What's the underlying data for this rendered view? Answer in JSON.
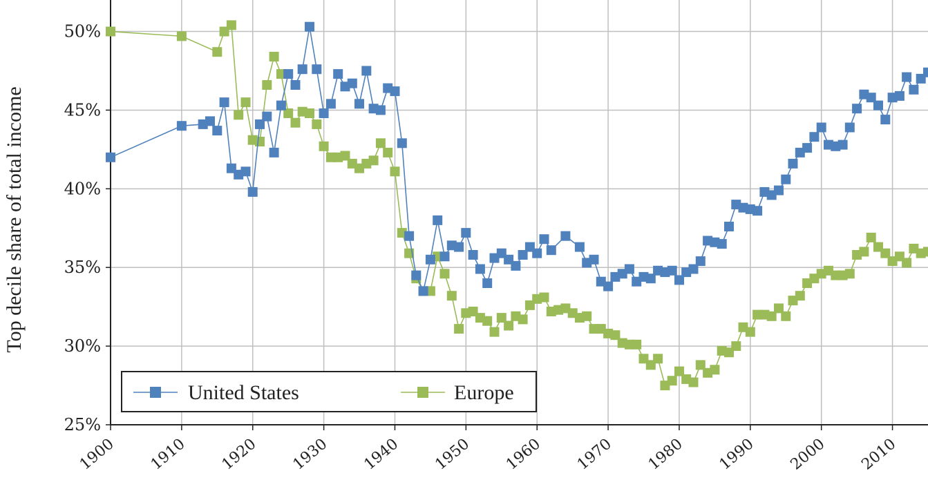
{
  "chart_data": {
    "type": "line",
    "title": "",
    "xlabel": "",
    "ylabel": "Top decile share of total income",
    "xlim": [
      1900,
      2015
    ],
    "ylim": [
      0.25,
      0.52
    ],
    "x_ticks": [
      1900,
      1910,
      1920,
      1930,
      1940,
      1950,
      1960,
      1970,
      1980,
      1990,
      2000,
      2010
    ],
    "x_tick_labels": [
      "1900",
      "1910",
      "1920",
      "1930",
      "1940",
      "1950",
      "1960",
      "1970",
      "1980",
      "1990",
      "2000",
      "2010"
    ],
    "y_ticks": [
      0.25,
      0.3,
      0.35,
      0.4,
      0.45,
      0.5
    ],
    "y_tick_labels": [
      "25%",
      "30%",
      "35%",
      "40%",
      "45%",
      "50%"
    ],
    "grid": true,
    "legend_position": "bottom-left",
    "series": [
      {
        "name": "United States",
        "color": "#4f81bd",
        "marker": "square",
        "points": [
          [
            1900,
            0.42
          ],
          [
            1910,
            0.44
          ],
          [
            1913,
            0.441
          ],
          [
            1914,
            0.443
          ],
          [
            1915,
            0.437
          ],
          [
            1916,
            0.455
          ],
          [
            1917,
            0.413
          ],
          [
            1918,
            0.409
          ],
          [
            1919,
            0.411
          ],
          [
            1920,
            0.398
          ],
          [
            1921,
            0.441
          ],
          [
            1922,
            0.446
          ],
          [
            1923,
            0.423
          ],
          [
            1924,
            0.453
          ],
          [
            1925,
            0.473
          ],
          [
            1926,
            0.466
          ],
          [
            1927,
            0.476
          ],
          [
            1928,
            0.503
          ],
          [
            1929,
            0.476
          ],
          [
            1930,
            0.448
          ],
          [
            1931,
            0.454
          ],
          [
            1932,
            0.473
          ],
          [
            1933,
            0.465
          ],
          [
            1934,
            0.467
          ],
          [
            1935,
            0.454
          ],
          [
            1936,
            0.475
          ],
          [
            1937,
            0.451
          ],
          [
            1938,
            0.45
          ],
          [
            1939,
            0.464
          ],
          [
            1940,
            0.462
          ],
          [
            1941,
            0.429
          ],
          [
            1942,
            0.37
          ],
          [
            1943,
            0.345
          ],
          [
            1944,
            0.335
          ],
          [
            1945,
            0.355
          ],
          [
            1946,
            0.38
          ],
          [
            1947,
            0.357
          ],
          [
            1948,
            0.364
          ],
          [
            1949,
            0.363
          ],
          [
            1950,
            0.372
          ],
          [
            1951,
            0.358
          ],
          [
            1952,
            0.349
          ],
          [
            1953,
            0.34
          ],
          [
            1954,
            0.356
          ],
          [
            1955,
            0.359
          ],
          [
            1956,
            0.355
          ],
          [
            1957,
            0.351
          ],
          [
            1958,
            0.358
          ],
          [
            1959,
            0.363
          ],
          [
            1960,
            0.359
          ],
          [
            1961,
            0.368
          ],
          [
            1962,
            0.361
          ],
          [
            1964,
            0.37
          ],
          [
            1966,
            0.363
          ],
          [
            1967,
            0.353
          ],
          [
            1968,
            0.355
          ],
          [
            1969,
            0.341
          ],
          [
            1970,
            0.338
          ],
          [
            1971,
            0.344
          ],
          [
            1972,
            0.346
          ],
          [
            1973,
            0.349
          ],
          [
            1974,
            0.341
          ],
          [
            1975,
            0.344
          ],
          [
            1976,
            0.343
          ],
          [
            1977,
            0.348
          ],
          [
            1978,
            0.347
          ],
          [
            1979,
            0.348
          ],
          [
            1980,
            0.342
          ],
          [
            1981,
            0.347
          ],
          [
            1982,
            0.349
          ],
          [
            1983,
            0.354
          ],
          [
            1984,
            0.367
          ],
          [
            1985,
            0.366
          ],
          [
            1986,
            0.365
          ],
          [
            1987,
            0.376
          ],
          [
            1988,
            0.39
          ],
          [
            1989,
            0.388
          ],
          [
            1990,
            0.387
          ],
          [
            1991,
            0.386
          ],
          [
            1992,
            0.398
          ],
          [
            1993,
            0.396
          ],
          [
            1994,
            0.399
          ],
          [
            1995,
            0.406
          ],
          [
            1996,
            0.416
          ],
          [
            1997,
            0.423
          ],
          [
            1998,
            0.426
          ],
          [
            1999,
            0.433
          ],
          [
            2000,
            0.439
          ],
          [
            2001,
            0.428
          ],
          [
            2002,
            0.427
          ],
          [
            2003,
            0.428
          ],
          [
            2004,
            0.439
          ],
          [
            2005,
            0.451
          ],
          [
            2006,
            0.46
          ],
          [
            2007,
            0.458
          ],
          [
            2008,
            0.453
          ],
          [
            2009,
            0.444
          ],
          [
            2010,
            0.458
          ],
          [
            2011,
            0.459
          ],
          [
            2012,
            0.471
          ],
          [
            2013,
            0.463
          ],
          [
            2014,
            0.47
          ],
          [
            2015,
            0.474
          ]
        ]
      },
      {
        "name": "Europe",
        "color": "#9bbb59",
        "marker": "square",
        "points": [
          [
            1900,
            0.5
          ],
          [
            1910,
            0.497
          ],
          [
            1915,
            0.487
          ],
          [
            1916,
            0.5
          ],
          [
            1917,
            0.504
          ],
          [
            1918,
            0.447
          ],
          [
            1919,
            0.455
          ],
          [
            1920,
            0.431
          ],
          [
            1921,
            0.43
          ],
          [
            1922,
            0.466
          ],
          [
            1923,
            0.484
          ],
          [
            1924,
            0.473
          ],
          [
            1925,
            0.448
          ],
          [
            1926,
            0.442
          ],
          [
            1927,
            0.449
          ],
          [
            1928,
            0.448
          ],
          [
            1929,
            0.441
          ],
          [
            1930,
            0.427
          ],
          [
            1931,
            0.42
          ],
          [
            1932,
            0.42
          ],
          [
            1933,
            0.421
          ],
          [
            1934,
            0.416
          ],
          [
            1935,
            0.413
          ],
          [
            1936,
            0.416
          ],
          [
            1937,
            0.418
          ],
          [
            1938,
            0.429
          ],
          [
            1939,
            0.423
          ],
          [
            1940,
            0.411
          ],
          [
            1941,
            0.372
          ],
          [
            1942,
            0.359
          ],
          [
            1943,
            0.343
          ],
          [
            1944,
            0.335
          ],
          [
            1945,
            0.335
          ],
          [
            1946,
            0.357
          ],
          [
            1947,
            0.346
          ],
          [
            1948,
            0.332
          ],
          [
            1949,
            0.311
          ],
          [
            1950,
            0.321
          ],
          [
            1951,
            0.322
          ],
          [
            1952,
            0.318
          ],
          [
            1953,
            0.316
          ],
          [
            1954,
            0.309
          ],
          [
            1955,
            0.318
          ],
          [
            1956,
            0.313
          ],
          [
            1957,
            0.319
          ],
          [
            1958,
            0.317
          ],
          [
            1959,
            0.326
          ],
          [
            1960,
            0.33
          ],
          [
            1961,
            0.331
          ],
          [
            1962,
            0.322
          ],
          [
            1963,
            0.323
          ],
          [
            1964,
            0.324
          ],
          [
            1965,
            0.321
          ],
          [
            1966,
            0.318
          ],
          [
            1967,
            0.319
          ],
          [
            1968,
            0.311
          ],
          [
            1969,
            0.311
          ],
          [
            1970,
            0.308
          ],
          [
            1971,
            0.307
          ],
          [
            1972,
            0.302
          ],
          [
            1973,
            0.301
          ],
          [
            1974,
            0.301
          ],
          [
            1975,
            0.292
          ],
          [
            1976,
            0.288
          ],
          [
            1977,
            0.292
          ],
          [
            1978,
            0.275
          ],
          [
            1979,
            0.278
          ],
          [
            1980,
            0.284
          ],
          [
            1981,
            0.279
          ],
          [
            1982,
            0.277
          ],
          [
            1983,
            0.288
          ],
          [
            1984,
            0.283
          ],
          [
            1985,
            0.285
          ],
          [
            1986,
            0.297
          ],
          [
            1987,
            0.296
          ],
          [
            1988,
            0.3
          ],
          [
            1989,
            0.312
          ],
          [
            1990,
            0.309
          ],
          [
            1991,
            0.32
          ],
          [
            1992,
            0.32
          ],
          [
            1993,
            0.319
          ],
          [
            1994,
            0.324
          ],
          [
            1995,
            0.319
          ],
          [
            1996,
            0.329
          ],
          [
            1997,
            0.332
          ],
          [
            1998,
            0.34
          ],
          [
            1999,
            0.343
          ],
          [
            2000,
            0.346
          ],
          [
            2001,
            0.348
          ],
          [
            2002,
            0.345
          ],
          [
            2003,
            0.345
          ],
          [
            2004,
            0.346
          ],
          [
            2005,
            0.358
          ],
          [
            2006,
            0.36
          ],
          [
            2007,
            0.369
          ],
          [
            2008,
            0.363
          ],
          [
            2009,
            0.359
          ],
          [
            2010,
            0.354
          ],
          [
            2011,
            0.357
          ],
          [
            2012,
            0.353
          ],
          [
            2013,
            0.362
          ],
          [
            2014,
            0.359
          ],
          [
            2015,
            0.36
          ]
        ]
      }
    ]
  }
}
